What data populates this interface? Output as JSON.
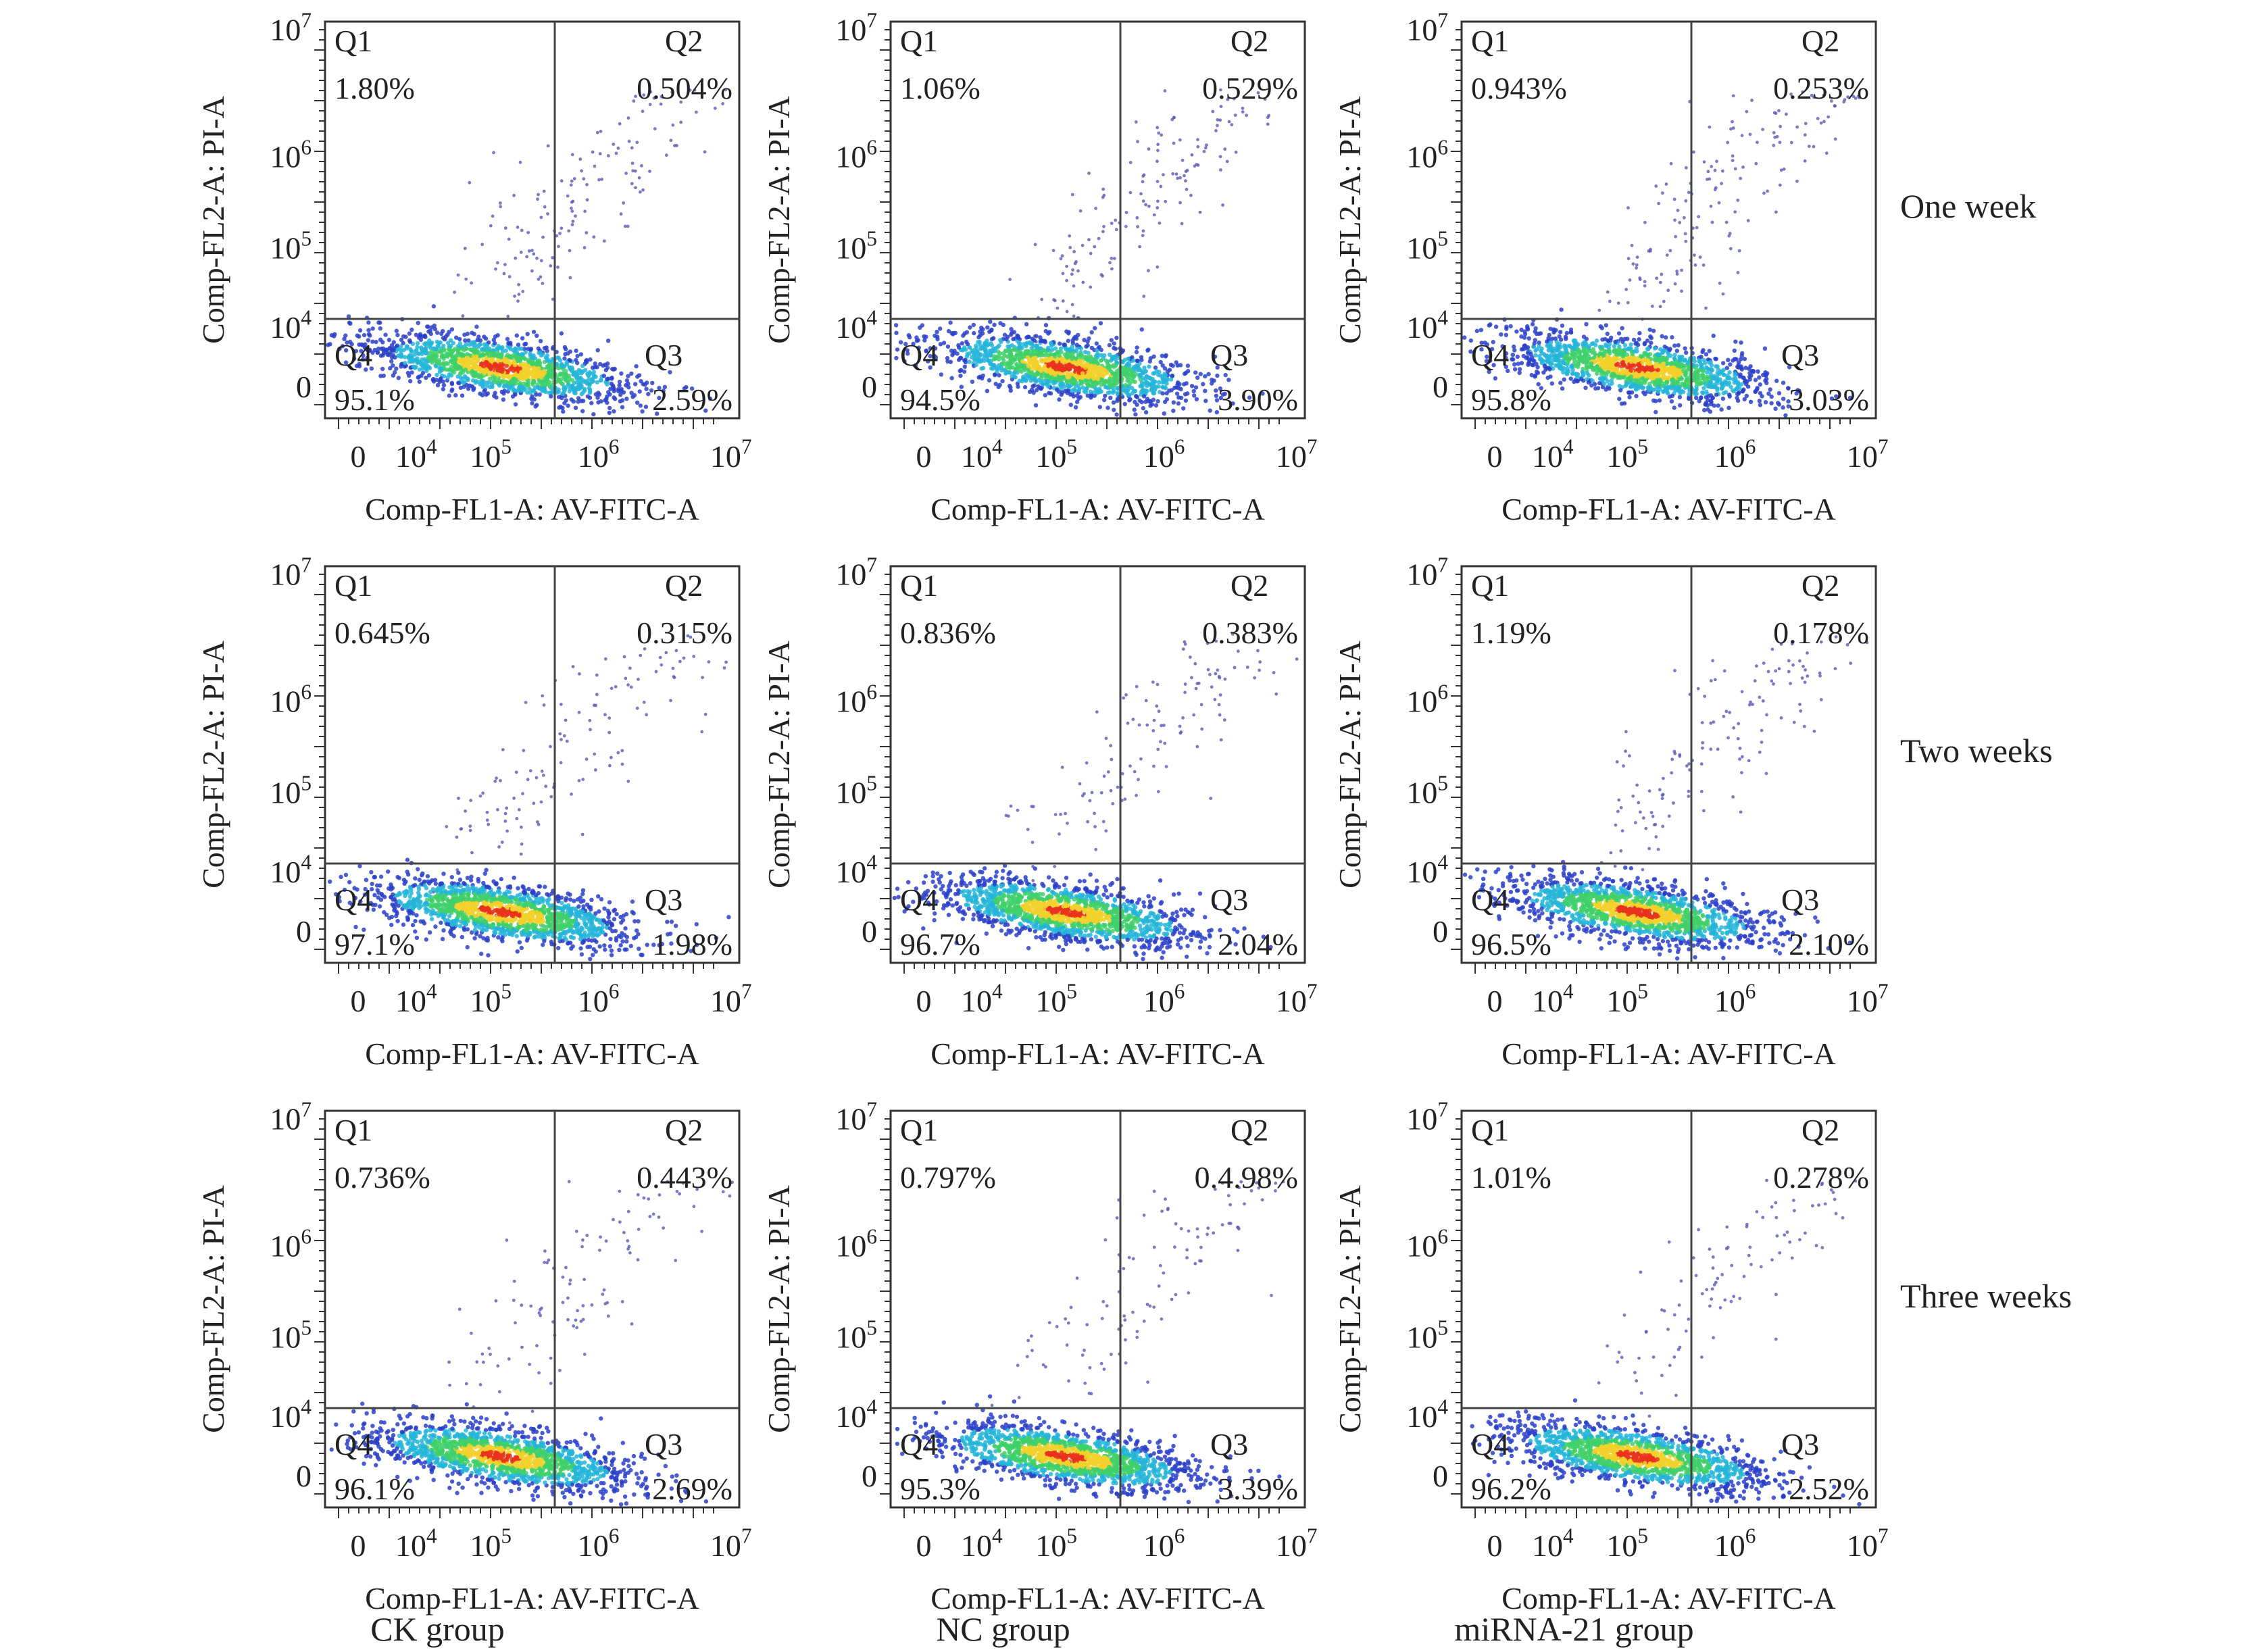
{
  "figure": {
    "row_labels": [
      "One week",
      "Two weeks",
      "Three weeks"
    ],
    "column_labels": [
      "CK group",
      "NC group",
      "miRNA-21 group"
    ]
  },
  "colors": {
    "sparse_points": "#5a5ab4",
    "density_low": "#2a3fc8",
    "density_mid_low": "#24b5d8",
    "density_mid": "#3fd06a",
    "density_high": "#f2d12c",
    "density_peak": "#e8331c",
    "gate_lines": "#444444"
  },
  "chart_data": [
    {
      "type": "scatter",
      "row": "One week",
      "column": "CK group",
      "xlabel": "Comp-FL1-A: AV-FITC-A",
      "ylabel": "Comp-FL2-A: PI-A",
      "x_ticks": [
        "0",
        "10^4",
        "10^5",
        "10^6",
        "10^7"
      ],
      "y_ticks": [
        "0",
        "10^4",
        "10^5",
        "10^6",
        "10^7"
      ],
      "quadrants": [
        {
          "name": "Q1",
          "percent": "1.80%"
        },
        {
          "name": "Q2",
          "percent": "0.504%"
        },
        {
          "name": "Q3",
          "percent": "2.59%"
        },
        {
          "name": "Q4",
          "percent": "95.1%"
        }
      ]
    },
    {
      "type": "scatter",
      "row": "One week",
      "column": "NC group",
      "xlabel": "Comp-FL1-A: AV-FITC-A",
      "ylabel": "Comp-FL2-A: PI-A",
      "x_ticks": [
        "0",
        "10^4",
        "10^5",
        "10^6",
        "10^7"
      ],
      "y_ticks": [
        "0",
        "10^4",
        "10^5",
        "10^6",
        "10^7"
      ],
      "quadrants": [
        {
          "name": "Q1",
          "percent": "1.06%"
        },
        {
          "name": "Q2",
          "percent": "0.529%"
        },
        {
          "name": "Q3",
          "percent": "3.90%"
        },
        {
          "name": "Q4",
          "percent": "94.5%"
        }
      ]
    },
    {
      "type": "scatter",
      "row": "One week",
      "column": "miRNA-21 group",
      "xlabel": "Comp-FL1-A: AV-FITC-A",
      "ylabel": "Comp-FL2-A: PI-A",
      "x_ticks": [
        "0",
        "10^4",
        "10^5",
        "10^6",
        "10^7"
      ],
      "y_ticks": [
        "0",
        "10^4",
        "10^5",
        "10^6",
        "10^7"
      ],
      "quadrants": [
        {
          "name": "Q1",
          "percent": "0.943%"
        },
        {
          "name": "Q2",
          "percent": "0.253%"
        },
        {
          "name": "Q3",
          "percent": "3.03%"
        },
        {
          "name": "Q4",
          "percent": "95.8%"
        }
      ]
    },
    {
      "type": "scatter",
      "row": "Two weeks",
      "column": "CK group",
      "xlabel": "Comp-FL1-A: AV-FITC-A",
      "ylabel": "Comp-FL2-A: PI-A",
      "x_ticks": [
        "0",
        "10^4",
        "10^5",
        "10^6",
        "10^7"
      ],
      "y_ticks": [
        "0",
        "10^4",
        "10^5",
        "10^6",
        "10^7"
      ],
      "quadrants": [
        {
          "name": "Q1",
          "percent": "0.645%"
        },
        {
          "name": "Q2",
          "percent": "0.315%"
        },
        {
          "name": "Q3",
          "percent": "1.98%"
        },
        {
          "name": "Q4",
          "percent": "97.1%"
        }
      ]
    },
    {
      "type": "scatter",
      "row": "Two weeks",
      "column": "NC group",
      "xlabel": "Comp-FL1-A: AV-FITC-A",
      "ylabel": "Comp-FL2-A: PI-A",
      "x_ticks": [
        "0",
        "10^4",
        "10^5",
        "10^6",
        "10^7"
      ],
      "y_ticks": [
        "0",
        "10^4",
        "10^5",
        "10^6",
        "10^7"
      ],
      "quadrants": [
        {
          "name": "Q1",
          "percent": "0.836%"
        },
        {
          "name": "Q2",
          "percent": "0.383%"
        },
        {
          "name": "Q3",
          "percent": "2.04%"
        },
        {
          "name": "Q4",
          "percent": "96.7%"
        }
      ]
    },
    {
      "type": "scatter",
      "row": "Two weeks",
      "column": "miRNA-21 group",
      "xlabel": "Comp-FL1-A: AV-FITC-A",
      "ylabel": "Comp-FL2-A: PI-A",
      "x_ticks": [
        "0",
        "10^4",
        "10^5",
        "10^6",
        "10^7"
      ],
      "y_ticks": [
        "0",
        "10^4",
        "10^5",
        "10^6",
        "10^7"
      ],
      "quadrants": [
        {
          "name": "Q1",
          "percent": "1.19%"
        },
        {
          "name": "Q2",
          "percent": "0.178%"
        },
        {
          "name": "Q3",
          "percent": "2.10%"
        },
        {
          "name": "Q4",
          "percent": "96.5%"
        }
      ]
    },
    {
      "type": "scatter",
      "row": "Three weeks",
      "column": "CK group",
      "xlabel": "Comp-FL1-A: AV-FITC-A",
      "ylabel": "Comp-FL2-A: PI-A",
      "x_ticks": [
        "0",
        "10^4",
        "10^5",
        "10^6",
        "10^7"
      ],
      "y_ticks": [
        "0",
        "10^4",
        "10^5",
        "10^6",
        "10^7"
      ],
      "quadrants": [
        {
          "name": "Q1",
          "percent": "0.736%"
        },
        {
          "name": "Q2",
          "percent": "0.443%"
        },
        {
          "name": "Q3",
          "percent": "2.69%"
        },
        {
          "name": "Q4",
          "percent": "96.1%"
        }
      ]
    },
    {
      "type": "scatter",
      "row": "Three weeks",
      "column": "NC group",
      "xlabel": "Comp-FL1-A: AV-FITC-A",
      "ylabel": "Comp-FL2-A: PI-A",
      "x_ticks": [
        "0",
        "10^4",
        "10^5",
        "10^6",
        "10^7"
      ],
      "y_ticks": [
        "0",
        "10^4",
        "10^5",
        "10^6",
        "10^7"
      ],
      "quadrants": [
        {
          "name": "Q1",
          "percent": "0.797%"
        },
        {
          "name": "Q2",
          "percent": "0.4.98%"
        },
        {
          "name": "Q3",
          "percent": "3.39%"
        },
        {
          "name": "Q4",
          "percent": "95.3%"
        }
      ]
    },
    {
      "type": "scatter",
      "row": "Three weeks",
      "column": "miRNA-21 group",
      "xlabel": "Comp-FL1-A: AV-FITC-A",
      "ylabel": "Comp-FL2-A: PI-A",
      "x_ticks": [
        "0",
        "10^4",
        "10^5",
        "10^6",
        "10^7"
      ],
      "y_ticks": [
        "0",
        "10^4",
        "10^5",
        "10^6",
        "10^7"
      ],
      "quadrants": [
        {
          "name": "Q1",
          "percent": "1.01%"
        },
        {
          "name": "Q2",
          "percent": "0.278%"
        },
        {
          "name": "Q3",
          "percent": "2.52%"
        },
        {
          "name": "Q4",
          "percent": "96.2%"
        }
      ]
    }
  ]
}
